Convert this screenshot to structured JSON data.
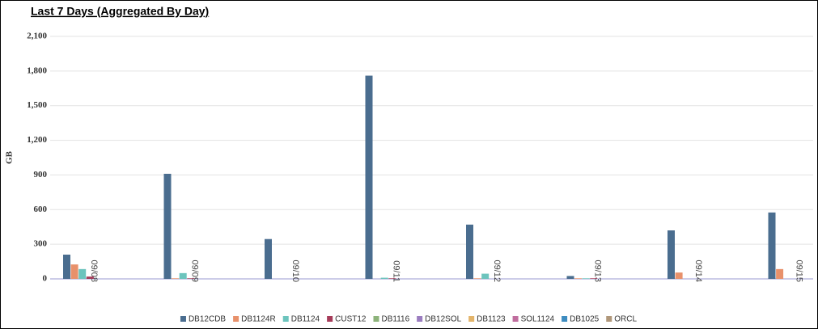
{
  "chart_data": {
    "type": "bar",
    "title": "Last 7 Days (Aggregated By Day)",
    "y_label": "GB",
    "categories": [
      "09/08",
      "09/09",
      "09/10",
      "09/11",
      "09/12",
      "09/13",
      "09/14",
      "09/15"
    ],
    "ylim": [
      0,
      2100
    ],
    "yticks": [
      0,
      300,
      600,
      900,
      {
        "value": 1200,
        "label": "1,200"
      },
      {
        "value": 1500,
        "label": "1,500"
      },
      {
        "value": 1800,
        "label": "1,800"
      },
      {
        "value": 2100,
        "label": "2,100"
      }
    ],
    "grid": true,
    "legend": "bottom",
    "series": [
      {
        "name": "DB12CDB",
        "color": "#4a6d8f",
        "values": [
          210,
          910,
          345,
          1760,
          470,
          25,
          420,
          575
        ]
      },
      {
        "name": "DB1124R",
        "color": "#e8916b",
        "values": [
          125,
          5,
          0,
          0,
          5,
          5,
          55,
          85
        ]
      },
      {
        "name": "DB1124",
        "color": "#6cc4bd",
        "values": [
          85,
          50,
          0,
          10,
          45,
          5,
          0,
          0
        ]
      },
      {
        "name": "CUST12",
        "color": "#a63c5a",
        "values": [
          20,
          5,
          0,
          5,
          0,
          5,
          0,
          0
        ]
      },
      {
        "name": "DB1116",
        "color": "#8db37a",
        "values": [
          0,
          0,
          0,
          0,
          0,
          0,
          0,
          0
        ]
      },
      {
        "name": "DB12SOL",
        "color": "#9b7dc0",
        "values": [
          0,
          0,
          0,
          0,
          0,
          0,
          0,
          0
        ]
      },
      {
        "name": "DB1123",
        "color": "#e3b46a",
        "values": [
          0,
          0,
          0,
          0,
          0,
          0,
          0,
          0
        ]
      },
      {
        "name": "SOL1124",
        "color": "#c06d9e",
        "values": [
          0,
          0,
          0,
          0,
          0,
          0,
          0,
          0
        ]
      },
      {
        "name": "DB1025",
        "color": "#3e8cc0",
        "values": [
          0,
          0,
          0,
          0,
          0,
          0,
          0,
          0
        ]
      },
      {
        "name": "ORCL",
        "color": "#b0977a",
        "values": [
          0,
          0,
          0,
          0,
          0,
          0,
          0,
          0
        ]
      }
    ]
  }
}
